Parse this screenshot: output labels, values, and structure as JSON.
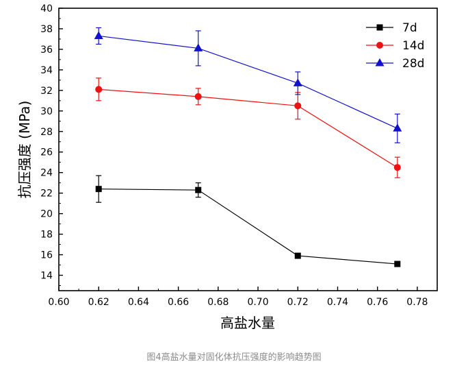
{
  "chart_data": {
    "type": "line",
    "xlabel": "高盐水量",
    "ylabel": "抗压强度 (MPa)",
    "xlim": [
      0.6,
      0.79
    ],
    "ylim": [
      12.5,
      40
    ],
    "x_ticks": [
      "0.60",
      "0.62",
      "0.64",
      "0.66",
      "0.68",
      "0.70",
      "0.72",
      "0.74",
      "0.76",
      "0.78"
    ],
    "y_ticks": [
      "14",
      "16",
      "18",
      "20",
      "22",
      "24",
      "26",
      "28",
      "30",
      "32",
      "34",
      "36",
      "38",
      "40"
    ],
    "x_tick_values": [
      0.6,
      0.62,
      0.64,
      0.66,
      0.68,
      0.7,
      0.72,
      0.74,
      0.76,
      0.78
    ],
    "y_tick_values": [
      14,
      16,
      18,
      20,
      22,
      24,
      26,
      28,
      30,
      32,
      34,
      36,
      38,
      40
    ],
    "x": [
      0.62,
      0.67,
      0.72,
      0.77
    ],
    "legend_position": "top-right",
    "grid": false,
    "series": [
      {
        "name": "7d",
        "color": "#000000",
        "marker": "square",
        "values": [
          22.4,
          22.3,
          15.9,
          15.1
        ],
        "errors": [
          1.3,
          0.7,
          0.0,
          0.0
        ]
      },
      {
        "name": "14d",
        "color": "#ee1111",
        "marker": "circle",
        "values": [
          32.1,
          31.4,
          30.5,
          24.5
        ],
        "errors": [
          1.1,
          0.8,
          1.3,
          1.0
        ]
      },
      {
        "name": "28d",
        "color": "#1111cc",
        "marker": "triangle",
        "values": [
          37.3,
          36.1,
          32.7,
          28.3
        ],
        "errors": [
          0.8,
          1.7,
          1.1,
          1.4
        ]
      }
    ]
  },
  "caption": "图4高盐水量对固化体抗压强度的影响趋势图"
}
